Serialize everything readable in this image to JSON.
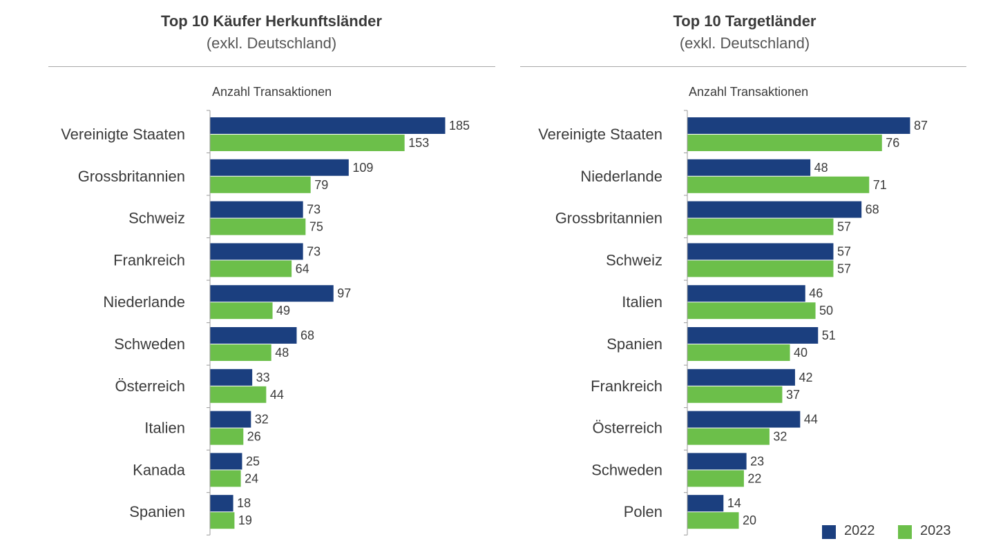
{
  "colors": {
    "series_2022": "#1b3f7f",
    "series_2023": "#6cbf4a",
    "axis": "#9a9a9a",
    "rule": "#a8a8a8",
    "text": "#3a3a3a"
  },
  "legend": {
    "items": [
      {
        "label": "2022"
      },
      {
        "label": "2023"
      }
    ]
  },
  "chart_data": [
    {
      "type": "bar",
      "orientation": "horizontal",
      "title": "Top 10 Käufer Herkunftsländer",
      "subtitle": "(exkl. Deutschland)",
      "measure_label": "Anzahl Transaktionen",
      "categories": [
        "Vereinigte Staaten",
        "Grossbritannien",
        "Schweiz",
        "Frankreich",
        "Niederlande",
        "Schweden",
        "Österreich",
        "Italien",
        "Kanada",
        "Spanien"
      ],
      "series": [
        {
          "name": "2022",
          "values": [
            185,
            109,
            73,
            73,
            97,
            68,
            33,
            32,
            25,
            18
          ]
        },
        {
          "name": "2023",
          "values": [
            153,
            79,
            75,
            64,
            49,
            48,
            44,
            26,
            24,
            19
          ]
        }
      ],
      "xlim": [
        0,
        185
      ],
      "grid": false,
      "data_labels": true
    },
    {
      "type": "bar",
      "orientation": "horizontal",
      "title": "Top 10 Targetländer",
      "subtitle": "(exkl. Deutschland)",
      "measure_label": "Anzahl Transaktionen",
      "categories": [
        "Vereinigte Staaten",
        "Niederlande",
        "Grossbritannien",
        "Schweiz",
        "Italien",
        "Spanien",
        "Frankreich",
        "Österreich",
        "Schweden",
        "Polen"
      ],
      "series": [
        {
          "name": "2022",
          "values": [
            87,
            48,
            68,
            57,
            46,
            51,
            42,
            44,
            23,
            14
          ]
        },
        {
          "name": "2023",
          "values": [
            76,
            71,
            57,
            57,
            50,
            40,
            37,
            32,
            22,
            20
          ]
        }
      ],
      "xlim": [
        0,
        87
      ],
      "grid": false,
      "data_labels": true,
      "legend_position": "bottom-right"
    }
  ]
}
